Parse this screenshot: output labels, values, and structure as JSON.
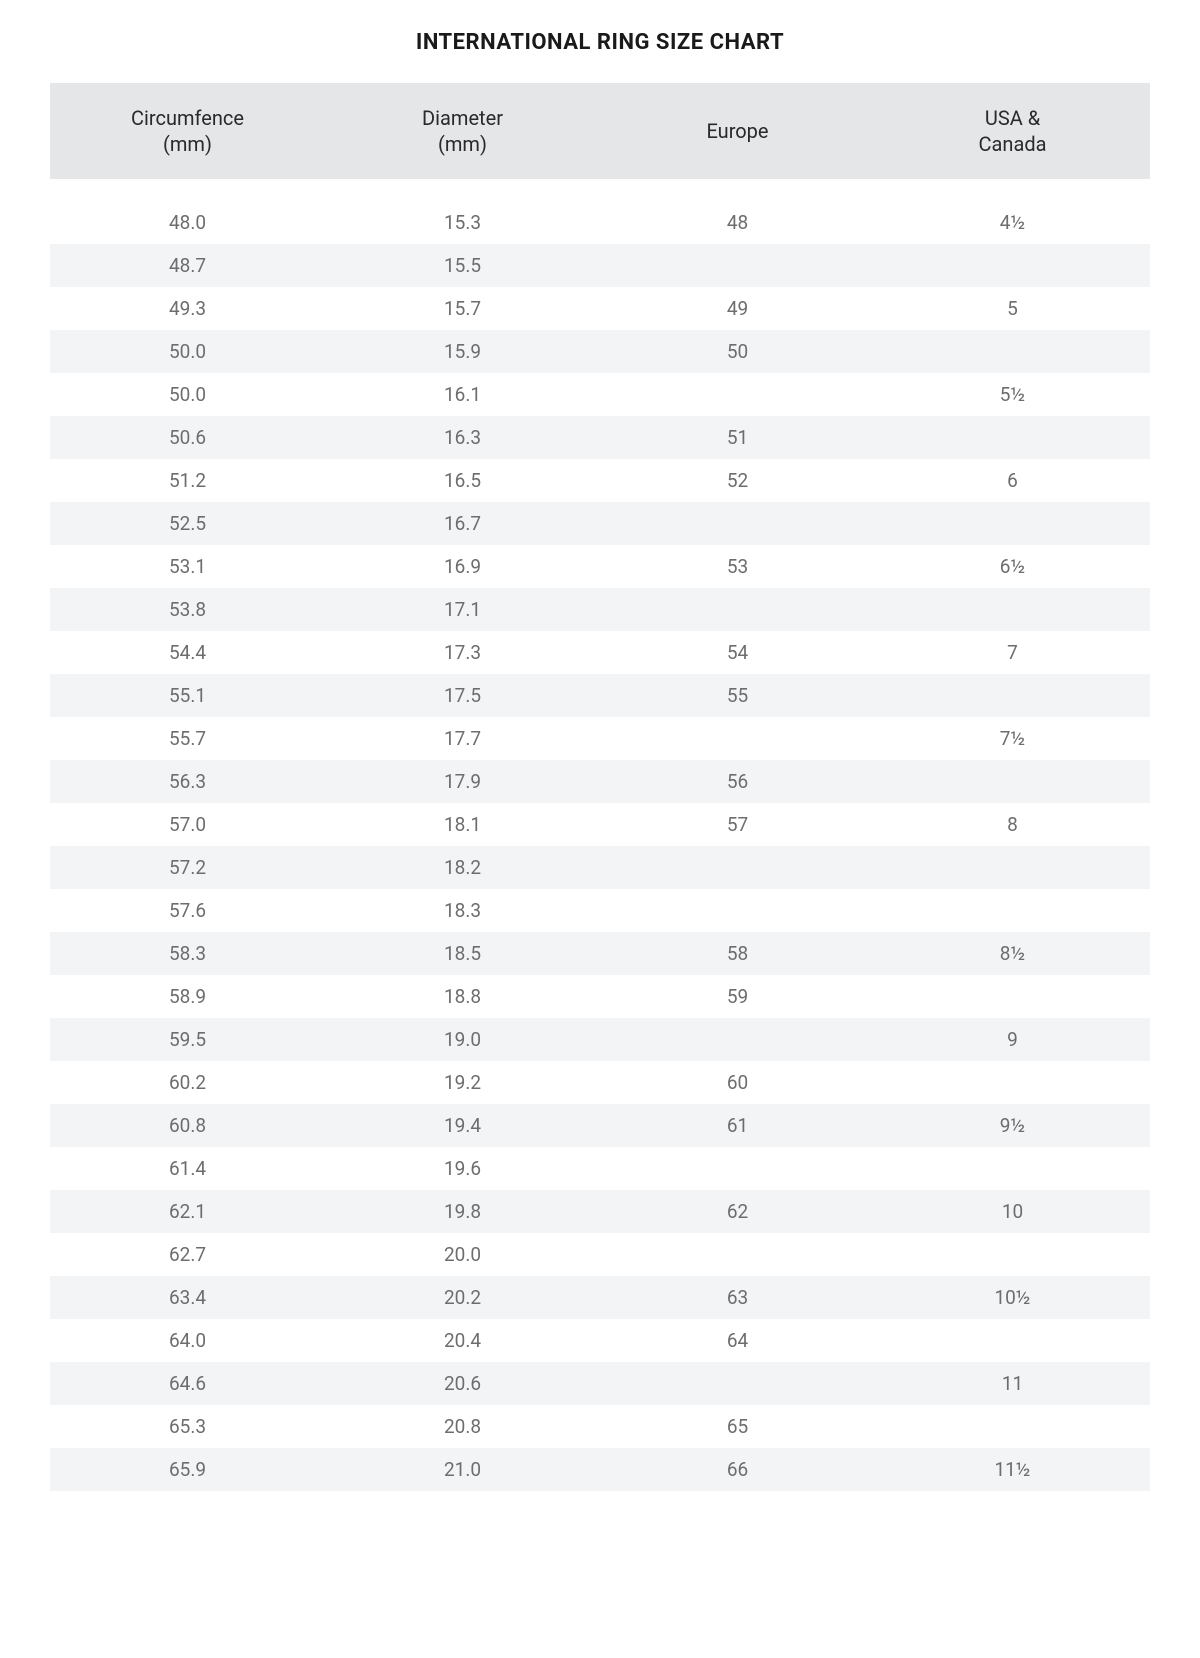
{
  "title": "INTERNATIONAL RING SIZE CHART",
  "table": {
    "type": "table",
    "background_color": "#ffffff",
    "header_bg": "#e5e6e8",
    "stripe_bg": "#f3f4f6",
    "text_color": "#6d6d6d",
    "header_text_color": "#2a2a2a",
    "header_fontsize": 20,
    "body_fontsize": 19,
    "columns": [
      "Circumfence (mm)",
      "Diameter (mm)",
      "Europe",
      "USA & Canada"
    ],
    "columns_lines": [
      [
        "Circumfence",
        "(mm)"
      ],
      [
        "Diameter",
        "(mm)"
      ],
      [
        "Europe"
      ],
      [
        "USA &",
        "Canada"
      ]
    ],
    "rows": [
      [
        "48.0",
        "15.3",
        "48",
        "4½"
      ],
      [
        "48.7",
        "15.5",
        "",
        ""
      ],
      [
        "49.3",
        "15.7",
        "49",
        "5"
      ],
      [
        "50.0",
        "15.9",
        "50",
        ""
      ],
      [
        "50.0",
        "16.1",
        "",
        "5½"
      ],
      [
        "50.6",
        "16.3",
        "51",
        ""
      ],
      [
        "51.2",
        "16.5",
        "52",
        "6"
      ],
      [
        "52.5",
        "16.7",
        "",
        ""
      ],
      [
        "53.1",
        "16.9",
        "53",
        "6½"
      ],
      [
        "53.8",
        "17.1",
        "",
        ""
      ],
      [
        "54.4",
        "17.3",
        "54",
        "7"
      ],
      [
        "55.1",
        "17.5",
        "55",
        ""
      ],
      [
        "55.7",
        "17.7",
        "",
        "7½"
      ],
      [
        "56.3",
        "17.9",
        "56",
        ""
      ],
      [
        "57.0",
        "18.1",
        "57",
        "8"
      ],
      [
        "57.2",
        "18.2",
        "",
        ""
      ],
      [
        "57.6",
        "18.3",
        "",
        ""
      ],
      [
        "58.3",
        "18.5",
        "58",
        "8½"
      ],
      [
        "58.9",
        "18.8",
        "59",
        ""
      ],
      [
        "59.5",
        "19.0",
        "",
        "9"
      ],
      [
        "60.2",
        "19.2",
        "60",
        ""
      ],
      [
        "60.8",
        "19.4",
        "61",
        "9½"
      ],
      [
        "61.4",
        "19.6",
        "",
        ""
      ],
      [
        "62.1",
        "19.8",
        "62",
        "10"
      ],
      [
        "62.7",
        "20.0",
        "",
        ""
      ],
      [
        "63.4",
        "20.2",
        "63",
        "10½"
      ],
      [
        "64.0",
        "20.4",
        "64",
        ""
      ],
      [
        "64.6",
        "20.6",
        "",
        "11"
      ],
      [
        "65.3",
        "20.8",
        "65",
        ""
      ],
      [
        "65.9",
        "21.0",
        "66",
        "11½"
      ]
    ]
  }
}
